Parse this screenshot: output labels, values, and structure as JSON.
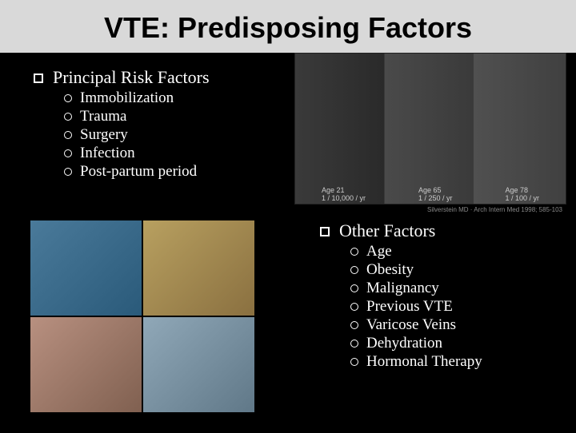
{
  "title": "VTE: Predisposing Factors",
  "left": {
    "heading": "Principal Risk Factors",
    "items": [
      "Immobilization",
      "Trauma",
      "Surgery",
      "Infection",
      "Post-partum period"
    ]
  },
  "right": {
    "heading": "Other Factors",
    "items": [
      "Age",
      "Obesity",
      "Malignancy",
      "Previous VTE",
      "Varicose Veins",
      "Dehydration",
      "Hormonal Therapy"
    ]
  },
  "top_image": {
    "captions": [
      {
        "age": "Age 21",
        "rate": "1 / 10,000 / yr"
      },
      {
        "age": "Age 65",
        "rate": "1 / 250 / yr"
      },
      {
        "age": "Age 78",
        "rate": "1 / 100 / yr"
      }
    ],
    "source": "Silverstein MD · Arch Intern Med 1998; 585-103"
  },
  "styling": {
    "background_color": "#000000",
    "title_background": "#d9d9d9",
    "title_color": "#000000",
    "text_color": "#ffffff",
    "title_fontsize": 36,
    "heading_fontsize": 22,
    "item_fontsize": 19
  }
}
